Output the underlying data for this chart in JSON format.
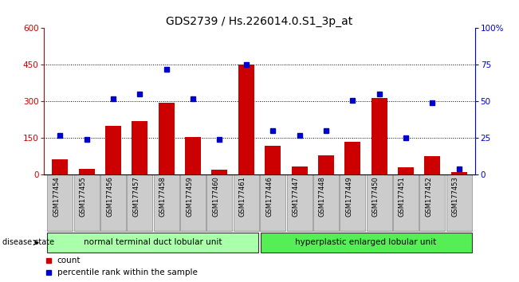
{
  "title": "GDS2739 / Hs.226014.0.S1_3p_at",
  "samples": [
    "GSM177454",
    "GSM177455",
    "GSM177456",
    "GSM177457",
    "GSM177458",
    "GSM177459",
    "GSM177460",
    "GSM177461",
    "GSM177446",
    "GSM177447",
    "GSM177448",
    "GSM177449",
    "GSM177450",
    "GSM177451",
    "GSM177452",
    "GSM177453"
  ],
  "counts": [
    65,
    25,
    200,
    220,
    295,
    155,
    20,
    450,
    120,
    35,
    80,
    135,
    315,
    30,
    75,
    10
  ],
  "percentiles": [
    27,
    24,
    52,
    55,
    72,
    52,
    24,
    75,
    30,
    27,
    30,
    51,
    55,
    25,
    49,
    4
  ],
  "group1_label": "normal terminal duct lobular unit",
  "group2_label": "hyperplastic enlarged lobular unit",
  "group1_count": 8,
  "group2_count": 8,
  "ylim_left": [
    0,
    600
  ],
  "ylim_right": [
    0,
    100
  ],
  "yticks_left": [
    0,
    150,
    300,
    450,
    600
  ],
  "yticks_right": [
    0,
    25,
    50,
    75,
    100
  ],
  "ytick_labels_right": [
    "0",
    "25",
    "50",
    "75",
    "100%"
  ],
  "bar_color": "#cc0000",
  "dot_color": "#0000cc",
  "group1_color": "#aaffaa",
  "group2_color": "#55ee55",
  "tick_bg_color": "#cccccc",
  "disease_state_label": "disease state",
  "legend_count_label": "count",
  "legend_pct_label": "percentile rank within the sample",
  "title_fontsize": 10,
  "axis_label_fontsize": 7.5
}
